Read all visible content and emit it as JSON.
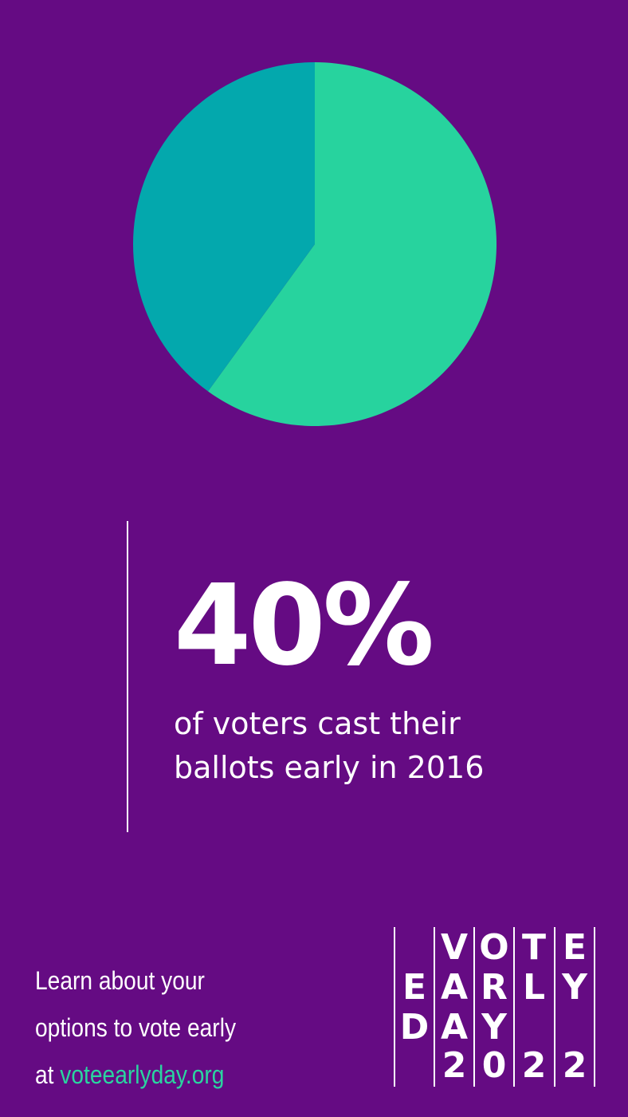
{
  "chart_data": {
    "type": "pie",
    "slices": [
      {
        "label": "",
        "value": 60,
        "color": "#27d39e"
      },
      {
        "label": "",
        "value": 40,
        "color": "#03a8ad"
      }
    ]
  },
  "stat": {
    "value": "40%",
    "caption_line1": "of voters cast their",
    "caption_line2": "ballots early in 2016"
  },
  "footer": {
    "line1": "Learn about your",
    "line2": "options to vote early",
    "line3_prefix": "at ",
    "line3_link": "voteearlyday.org"
  },
  "logo": {
    "row1": [
      "V",
      "O",
      "T",
      "E"
    ],
    "row2": [
      "E",
      "A",
      "R",
      "L",
      "Y"
    ],
    "row3": [
      "D",
      "A",
      "Y"
    ],
    "row4": [
      "2",
      "0",
      "2",
      "2"
    ]
  },
  "colors": {
    "background": "#650b83",
    "accent": "#2ad5a0"
  }
}
